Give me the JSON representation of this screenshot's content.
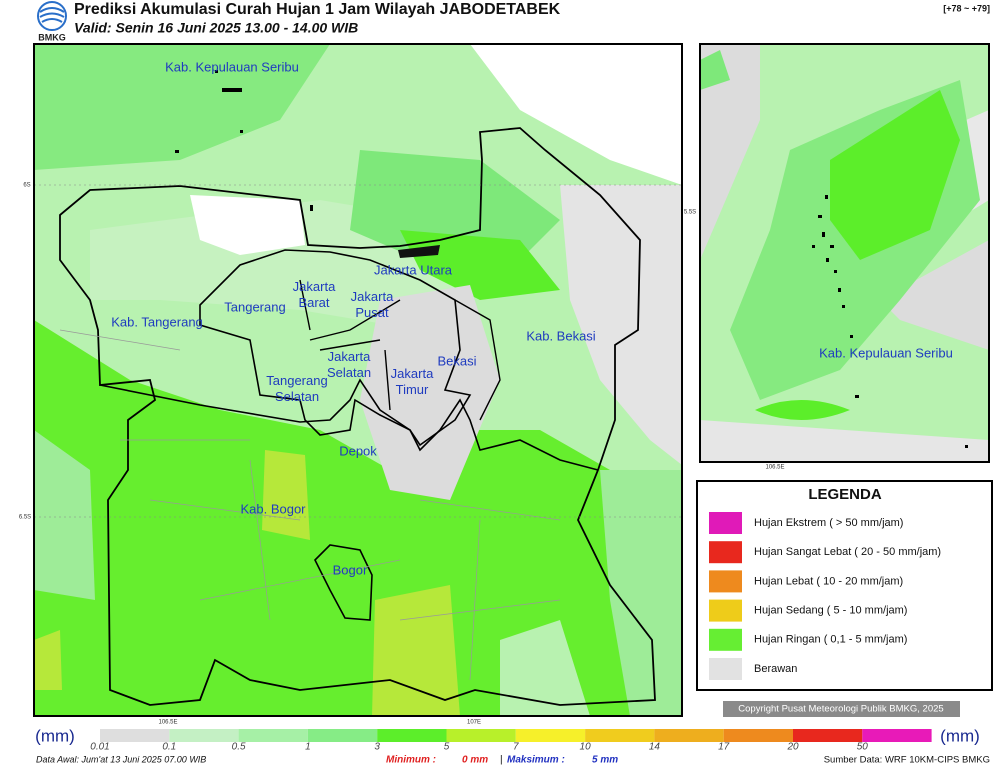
{
  "header": {
    "logo": "BMKG",
    "title": "Prediksi Akumulasi Curah Hujan 1 Jam Wilayah JABODETABEK",
    "valid": "Valid: Senin 16 Juni 2025 13.00 - 14.00 WIB",
    "range": "[+78 ~ +79]"
  },
  "map": {
    "regions": [
      "Kab. Kepulauan Seribu",
      "Kab. Tangerang",
      "Tangerang",
      "Jakarta Barat",
      "Jakarta Utara",
      "Jakarta Pusat",
      "Jakarta Selatan",
      "Jakarta Timur",
      "Bekasi",
      "Kab. Bekasi",
      "Tangerang Selatan",
      "Depok",
      "Kab. Bogor",
      "Bogor"
    ],
    "lat_ticks": [
      "6S",
      "6.5S"
    ],
    "lon_ticks": [
      "106.5E",
      "107E"
    ]
  },
  "inset": {
    "region": "Kab. Kepulauan Seribu",
    "lat_tick": "5.5S",
    "lon_tick": "106.5E"
  },
  "legend": {
    "title": "LEGENDA",
    "items": [
      {
        "label": "Hujan Ekstrem ( > 50 mm/jam)",
        "color": "#e01ab8"
      },
      {
        "label": "Hujan Sangat Lebat ( 20 - 50 mm/jam)",
        "color": "#e8281e"
      },
      {
        "label": "Hujan Lebat ( 10 - 20 mm/jam)",
        "color": "#ee8a1e"
      },
      {
        "label": "Hujan Sedang ( 5 - 10 mm/jam)",
        "color": "#eecc1a"
      },
      {
        "label": "Hujan Ringan ( 0,1 - 5 mm/jam)",
        "color": "#66ee33"
      },
      {
        "label": "Berawan",
        "color": "#e2e2e2"
      }
    ]
  },
  "copyright": "Copyright Pusat Meteorologi Publik BMKG, 2025",
  "colorbar": {
    "unit": "(mm)",
    "labels": [
      "0.01",
      "0.1",
      "0.5",
      "1",
      "3",
      "5",
      "7",
      "10",
      "14",
      "17",
      "20",
      "50"
    ],
    "colors": [
      "#dedede",
      "#c4f0c4",
      "#a6f0a6",
      "#86ec86",
      "#5cee2a",
      "#b8f02a",
      "#f6f02a",
      "#f0cc1e",
      "#eeae1e",
      "#ee8a1e",
      "#e8281e",
      "#e81ab8"
    ]
  },
  "footer": {
    "data_awal": "Data Awal: Jum'at 13 Juni 2025 07.00 WIB",
    "min_label": "Minimum :",
    "min_value": "0 mm",
    "separator": "|",
    "max_label": "Maksimum :",
    "max_value": "5 mm",
    "source": "Sumber Data: WRF 10KM-CIPS BMKG"
  }
}
